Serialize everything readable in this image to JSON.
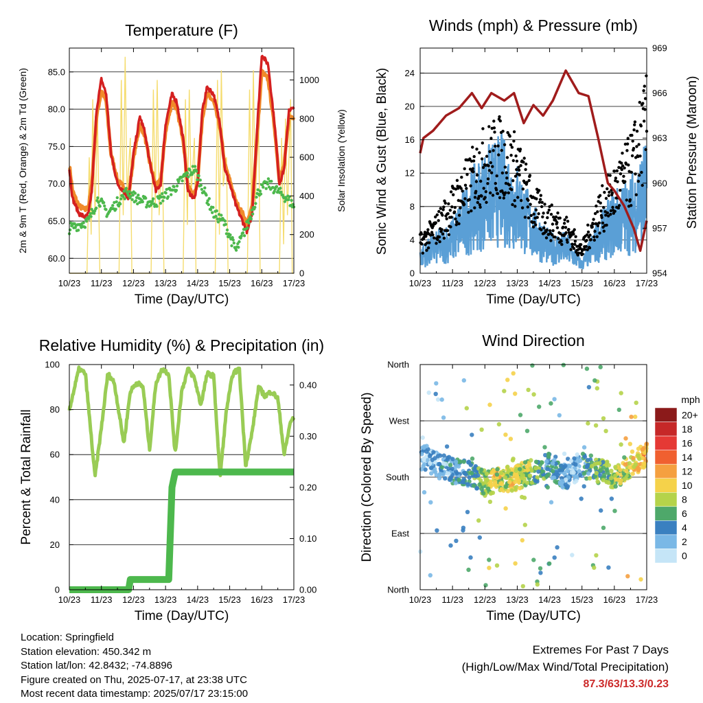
{
  "footer": {
    "location": "Location: Springfield",
    "elevation": "Station elevation: 450.342 m",
    "latlon": "Station lat/lon: 42.8432; -74.8896",
    "created": "Figure created on Thu, 2025-07-17, at 23:38 UTC",
    "recent": "Most recent data timestamp: 2025/07/17 23:15:00"
  },
  "extremes": {
    "title": "Extremes For Past 7 Days",
    "subtitle": "(High/Low/Max Wind/Total Precipitation)",
    "values": "87.3/63/13.3/0.23"
  },
  "colors": {
    "temp2m": "#d42020",
    "temp9m": "#f08a2a",
    "dewpoint": "#4db84d",
    "solar": "#f5dc6e",
    "gust": "#000000",
    "wind": "#5a9fd6",
    "pressure": "#a01c1c",
    "rh": "#99cc55",
    "precip": "#4db84d"
  },
  "chart_data": [
    {
      "type": "line",
      "title": "Temperature (F)",
      "xlabel": "Time (Day/UTC)",
      "ylabel": "2m & 9m T (Red, Orange) & 2m Td (Green)",
      "y2label": "Solar Insolation (Yellow)",
      "x_ticks": [
        "10/23",
        "11/23",
        "12/23",
        "13/23",
        "14/23",
        "15/23",
        "16/23",
        "17/23"
      ],
      "ylim": [
        58,
        88.2
      ],
      "y_ticks": [
        "60.0",
        "65.0",
        "70.0",
        "75.0",
        "80.0",
        "85.0"
      ],
      "y2lim": [
        0,
        1165
      ],
      "y2_ticks": [
        "0",
        "200",
        "400",
        "600",
        "800",
        "1000"
      ],
      "grid": true,
      "series": [
        {
          "name": "2m T",
          "axis": "left",
          "x": [
            0,
            0.1,
            0.3,
            0.5,
            0.6,
            0.7,
            0.85,
            1.0,
            1.15,
            1.3,
            1.5,
            1.7,
            1.85,
            2.0,
            2.2,
            2.35,
            2.5,
            2.7,
            2.85,
            3.0,
            3.2,
            3.35,
            3.55,
            3.7,
            3.9,
            4.0,
            4.15,
            4.3,
            4.5,
            4.7,
            4.85,
            5.0,
            5.2,
            5.4,
            5.55,
            5.7,
            5.85,
            6.0,
            6.2,
            6.4,
            6.55,
            6.7,
            6.85,
            7.0
          ],
          "values": [
            72,
            68,
            66,
            65.5,
            66,
            69,
            80,
            84,
            82,
            74,
            70,
            69,
            68,
            74,
            79,
            77,
            73,
            69,
            70,
            78,
            82,
            81,
            76,
            69,
            68,
            70,
            80,
            83,
            82,
            78,
            72,
            70,
            67,
            65,
            63.5,
            66,
            77,
            87.3,
            86,
            78,
            70,
            72,
            80,
            80
          ]
        },
        {
          "name": "9m T",
          "axis": "left",
          "x": [
            0,
            0.1,
            0.3,
            0.5,
            0.6,
            0.7,
            0.85,
            1.0,
            1.15,
            1.3,
            1.5,
            1.7,
            1.85,
            2.0,
            2.2,
            2.35,
            2.5,
            2.7,
            2.85,
            3.0,
            3.2,
            3.35,
            3.55,
            3.7,
            3.9,
            4.0,
            4.15,
            4.3,
            4.5,
            4.7,
            4.85,
            5.0,
            5.2,
            5.4,
            5.55,
            5.7,
            5.85,
            6.0,
            6.2,
            6.4,
            6.55,
            6.7,
            6.85,
            7.0
          ],
          "values": [
            72.5,
            69,
            67,
            66.5,
            67,
            70,
            79,
            82.5,
            81,
            74,
            70.5,
            69.5,
            68.5,
            73.5,
            78,
            76.5,
            73,
            69.5,
            70.5,
            77,
            81,
            80,
            76,
            69.5,
            68.5,
            70.5,
            79,
            82,
            81,
            77.5,
            72.5,
            70.5,
            67.5,
            66,
            64.5,
            67,
            76,
            85,
            84,
            77.5,
            70.5,
            72.5,
            79,
            79
          ]
        },
        {
          "name": "2m Td",
          "axis": "left",
          "x": [
            0,
            0.3,
            0.6,
            0.9,
            1.2,
            1.5,
            1.8,
            2.1,
            2.4,
            2.7,
            3.0,
            3.3,
            3.6,
            3.9,
            4.2,
            4.5,
            4.8,
            5.0,
            5.2,
            5.4,
            5.6,
            5.9,
            6.2,
            6.5,
            6.8,
            7.0
          ],
          "values": [
            64,
            64.5,
            65,
            68,
            66,
            67.5,
            69,
            68,
            67.5,
            67.5,
            68.5,
            69.5,
            71,
            72,
            69,
            66,
            65,
            63,
            61,
            63,
            65,
            69,
            70,
            69,
            68,
            67
          ]
        },
        {
          "name": "Solar",
          "axis": "right",
          "x": [
            0,
            0.55,
            0.62,
            0.68,
            0.73,
            0.8,
            0.88,
            0.95,
            1.55,
            1.62,
            1.68,
            1.74,
            1.8,
            1.9,
            1.95,
            2.55,
            2.62,
            2.68,
            2.74,
            2.8,
            2.9,
            2.95,
            3.55,
            3.62,
            3.68,
            3.74,
            3.8,
            3.9,
            3.95,
            4.55,
            4.62,
            4.68,
            4.74,
            4.8,
            4.9,
            4.95,
            5.55,
            5.62,
            5.68,
            5.74,
            5.8,
            5.9,
            5.95,
            6.55,
            6.62,
            6.68,
            6.74,
            6.8,
            6.9,
            6.95,
            7.0
          ],
          "values": [
            0,
            0,
            600,
            200,
            900,
            300,
            800,
            0,
            0,
            1000,
            300,
            1120,
            400,
            700,
            0,
            0,
            950,
            350,
            1000,
            300,
            650,
            0,
            0,
            900,
            250,
            950,
            400,
            700,
            0,
            0,
            1000,
            200,
            1050,
            450,
            600,
            0,
            0,
            950,
            300,
            1050,
            350,
            850,
            0,
            0,
            700,
            150,
            800,
            300,
            900,
            0,
            0
          ]
        }
      ]
    },
    {
      "type": "line",
      "title": "Winds (mph) & Pressure (mb)",
      "xlabel": "Time (Day/UTC)",
      "ylabel": "Sonic Wind & Gust (Blue, Black)",
      "y2label": "Station Pressure (Maroon)",
      "x_ticks": [
        "10/23",
        "11/23",
        "12/23",
        "13/23",
        "14/23",
        "15/23",
        "16/23",
        "17/23"
      ],
      "ylim": [
        0,
        27
      ],
      "y_ticks": [
        "0",
        "4",
        "8",
        "12",
        "16",
        "20",
        "24"
      ],
      "y2lim": [
        954,
        969
      ],
      "y2_ticks": [
        "954",
        "957",
        "960",
        "963",
        "966",
        "969"
      ],
      "grid": true,
      "series": [
        {
          "name": "Wind",
          "axis": "left",
          "x": [
            0,
            0.5,
            1.0,
            1.5,
            2.0,
            2.5,
            3.0,
            3.5,
            4.0,
            4.5,
            5.0,
            5.5,
            6.0,
            6.5,
            7.0
          ],
          "values": [
            2,
            3,
            4,
            7,
            9,
            10,
            8,
            5,
            3,
            3,
            1,
            4,
            6,
            7,
            10
          ]
        },
        {
          "name": "Gust",
          "axis": "left",
          "x": [
            0,
            0.5,
            1.0,
            1.5,
            2.0,
            2.5,
            3.0,
            3.5,
            4.0,
            4.5,
            5.0,
            5.5,
            6.0,
            6.5,
            7.0
          ],
          "values": [
            4,
            6,
            9,
            12,
            15,
            16,
            14,
            9,
            7,
            6,
            3,
            8,
            11,
            14,
            20
          ]
        },
        {
          "name": "Pressure",
          "axis": "right",
          "x": [
            0,
            0.1,
            0.4,
            0.8,
            1.2,
            1.6,
            1.9,
            2.2,
            2.6,
            2.9,
            3.2,
            3.5,
            3.8,
            4.1,
            4.5,
            4.9,
            5.2,
            5.5,
            5.8,
            6.0,
            6.3,
            6.6,
            6.8,
            6.9,
            7.0
          ],
          "values": [
            962,
            963,
            963.5,
            964.5,
            965,
            966,
            965,
            966,
            965.5,
            966,
            964,
            965.2,
            964.5,
            965.5,
            967.5,
            966,
            965.8,
            963,
            960,
            959.5,
            958.5,
            957,
            955.5,
            956.5,
            957.5
          ]
        }
      ]
    },
    {
      "type": "line",
      "title": "Relative Humidity (%) & Precipitation (in)",
      "xlabel": "Time (Day/UTC)",
      "ylabel": "Percent & Total Rainfall",
      "x_ticks": [
        "10/23",
        "11/23",
        "12/23",
        "13/23",
        "14/23",
        "15/23",
        "16/23",
        "17/23"
      ],
      "ylim": [
        0,
        100
      ],
      "y_ticks": [
        "0",
        "20",
        "40",
        "60",
        "80",
        "100"
      ],
      "y2lim": [
        0,
        0.44
      ],
      "y2_ticks": [
        "0.00",
        "0.10",
        "0.20",
        "0.30",
        "0.40"
      ],
      "grid": true,
      "series": [
        {
          "name": "RH",
          "axis": "left",
          "x": [
            0,
            0.3,
            0.5,
            0.8,
            1.0,
            1.2,
            1.4,
            1.7,
            1.9,
            2.1,
            2.3,
            2.5,
            2.7,
            2.9,
            3.1,
            3.3,
            3.5,
            3.7,
            3.9,
            4.1,
            4.3,
            4.5,
            4.7,
            4.9,
            5.1,
            5.3,
            5.5,
            5.7,
            5.9,
            6.1,
            6.3,
            6.5,
            6.7,
            6.9,
            7.0
          ],
          "values": [
            80,
            98,
            96,
            50,
            72,
            96,
            92,
            65,
            88,
            92,
            90,
            62,
            92,
            98,
            96,
            60,
            88,
            98,
            94,
            82,
            96,
            95,
            50,
            80,
            96,
            98,
            55,
            70,
            90,
            86,
            88,
            85,
            60,
            75,
            76
          ]
        },
        {
          "name": "Precipitation",
          "axis": "right",
          "x": [
            0,
            1.85,
            1.9,
            3.1,
            3.2,
            3.3,
            3.4,
            7.0
          ],
          "values": [
            0,
            0,
            0.02,
            0.02,
            0.2,
            0.23,
            0.23,
            0.23
          ]
        }
      ]
    },
    {
      "type": "scatter",
      "title": "Wind Direction",
      "xlabel": "Time (Day/UTC)",
      "ylabel": "Direction (Colored By Speed)",
      "x_ticks": [
        "10/23",
        "11/23",
        "12/23",
        "13/23",
        "14/23",
        "15/23",
        "16/23",
        "17/23"
      ],
      "y_ticks": [
        "North",
        "East",
        "South",
        "West",
        "North"
      ],
      "ylim": [
        0,
        360
      ],
      "grid": true,
      "colorbar": {
        "title": "mph",
        "labels": [
          "20+",
          "18",
          "16",
          "14",
          "12",
          "10",
          "8",
          "6",
          "4",
          "2",
          "0"
        ],
        "colors": [
          "#8b1a1a",
          "#c62828",
          "#e53935",
          "#f06030",
          "#f5a040",
          "#f5d24a",
          "#b5d34a",
          "#4ea86a",
          "#3a80c0",
          "#7ab8e6",
          "#c5e5f7"
        ]
      },
      "series": [
        {
          "name": "Direction",
          "x": [
            0.2,
            0.5,
            1.0,
            1.5,
            2.0,
            2.5,
            3.0,
            3.5,
            4.0,
            4.5,
            5.0,
            5.5,
            6.0,
            6.5,
            7.0
          ],
          "values": [
            210,
            200,
            190,
            185,
            170,
            175,
            180,
            190,
            200,
            180,
            200,
            190,
            180,
            200,
            215
          ]
        }
      ]
    }
  ]
}
